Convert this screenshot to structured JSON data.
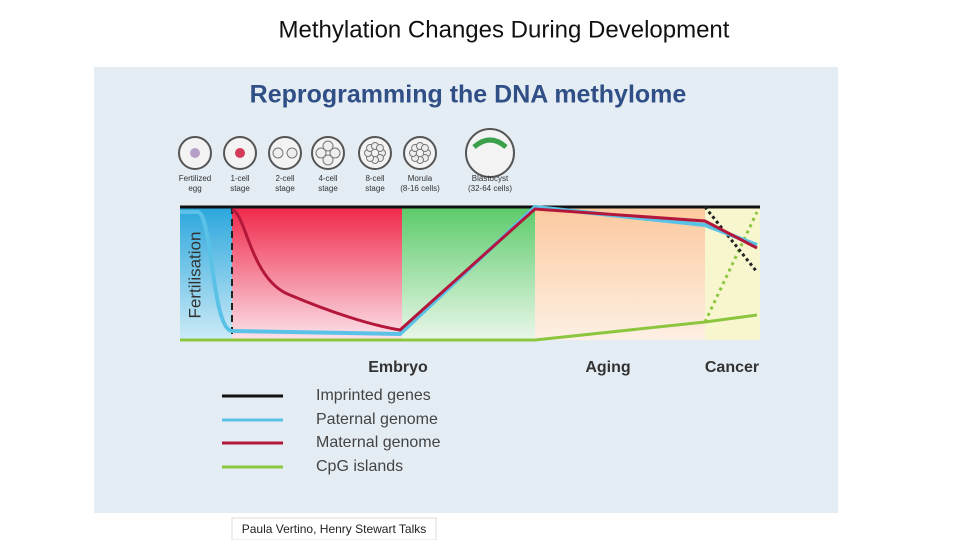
{
  "slide_title": "Methylation Changes During Development",
  "figure": {
    "title": "Reprogramming the DNA methylome",
    "stages": [
      {
        "lines": [
          "Fertilized",
          "egg"
        ]
      },
      {
        "lines": [
          "1-cell",
          "stage"
        ]
      },
      {
        "lines": [
          "2-cell",
          "stage"
        ]
      },
      {
        "lines": [
          "4-cell",
          "stage"
        ]
      },
      {
        "lines": [
          "8-cell",
          "stage"
        ]
      },
      {
        "lines": [
          "Morula",
          "(8-16 cells)"
        ]
      },
      {
        "lines": [
          "Blastocyst",
          "(32-64 cells)"
        ]
      }
    ],
    "y_label": "Fertilisation",
    "phases": [
      "Embryo",
      "Aging",
      "Cancer"
    ],
    "legend": [
      "Imprinted genes",
      "Paternal genome",
      "Maternal genome",
      "CpG islands"
    ]
  },
  "credit": "Paula Vertino, Henry Stewart Talks"
}
